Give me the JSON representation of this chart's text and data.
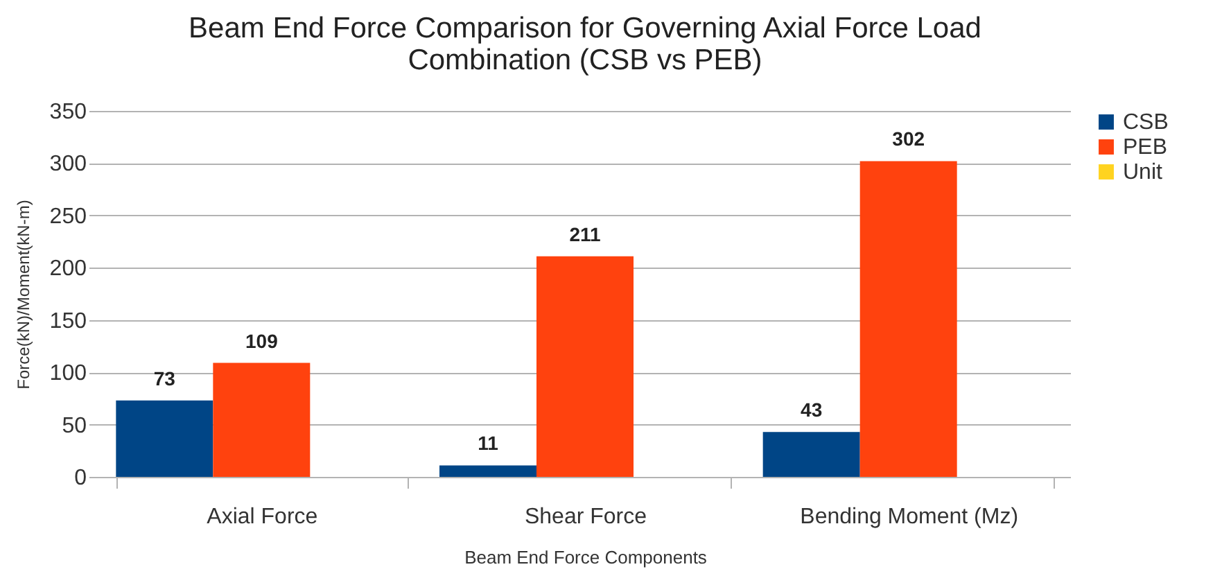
{
  "chart_data": {
    "type": "bar",
    "title": "Beam End Force Comparison for Governing Axial Force Load Combination (CSB vs PEB)",
    "xlabel": "Beam End Force Components",
    "ylabel": "Force(kN)/Moment(kN-m)",
    "categories": [
      "Axial Force",
      "Shear Force",
      "Bending Moment (Mz)"
    ],
    "series": [
      {
        "name": "CSB",
        "color": "#004586",
        "values": [
          73,
          11,
          43
        ]
      },
      {
        "name": "PEB",
        "color": "#ff420e",
        "values": [
          109,
          211,
          302
        ]
      },
      {
        "name": "Unit",
        "color": "#ffd320",
        "values": [
          null,
          null,
          null
        ]
      }
    ],
    "ylim": [
      0,
      350
    ],
    "yticks": [
      0,
      50,
      100,
      150,
      200,
      250,
      300,
      350
    ],
    "grid": "y",
    "legend": "right",
    "data_labels": true
  }
}
